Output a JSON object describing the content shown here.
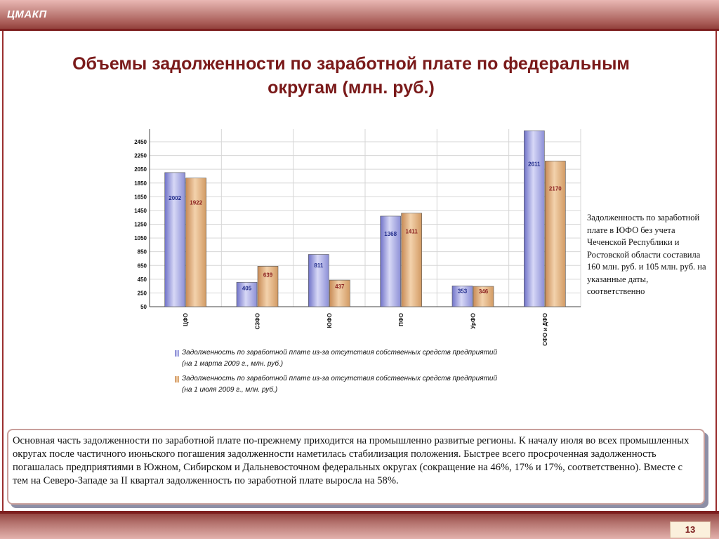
{
  "header": {
    "logo": "ЦМАКП"
  },
  "title": "Объемы задолженности по заработной плате по федеральным округам (млн. руб.)",
  "note": "Задолженность по заработной плате в ЮФО без учета Чеченской Республики и Ростовской области составила 160 млн. руб. и 105 млн. руб. на указанные даты, соответственно",
  "chart_data": {
    "type": "bar",
    "categories": [
      "ЦФО",
      "СЗФО",
      "ЮФО",
      "ПФО",
      "УрФО",
      "СФО и ДФО"
    ],
    "series": [
      {
        "name": "Задолженность по заработной плате из-за отсутствия собственных средств предприятий (на 1 марта 2009 г., млн. руб.)",
        "values": [
          2002,
          405,
          811,
          1368,
          353,
          2611
        ],
        "color": "#9c9ee0",
        "label_color": "#1f2a8a"
      },
      {
        "name": "Задолженность по заработной плате из-за отсутствия собственных средств предприятий (на 1 июля 2009 г., млн. руб.)",
        "values": [
          1922,
          639,
          437,
          1411,
          346,
          2170
        ],
        "color": "#e0b384",
        "label_color": "#8a1f1f"
      }
    ],
    "yticks": [
      50,
      250,
      450,
      650,
      850,
      1050,
      1250,
      1450,
      1650,
      1850,
      2050,
      2250,
      2450
    ],
    "ylim": [
      50,
      2600
    ],
    "grid": true,
    "legend_position": "bottom"
  },
  "legend": {
    "s1_line1": "Задолженность по заработной плате из-за отсутствия собственных средств предприятий",
    "s1_line2": "(на 1 марта 2009 г., млн. руб.)",
    "s2_line1": "Задолженность по заработной плате из-за отсутствия собственных средств предприятий",
    "s2_line2": "(на 1 июля 2009 г., млн. руб.)"
  },
  "summary": "Основная часть задолженности по заработной плате по-прежнему приходится на промышленно развитые регионы. К началу июля во всех промышленных округах после частичного июньского погашения задолженности наметилась стабилизация положения. Быстрее всего просроченная задолженность погашалась предприятиями в Южном, Сибирском и Дальневосточном федеральных округах (сокращение на 46%, 17% и 17%, соответственно). Вместе с тем на Северо-Западе за  II квартал задолженность по заработной плате выросла на 58%.",
  "footer": {
    "page_number": "13"
  }
}
